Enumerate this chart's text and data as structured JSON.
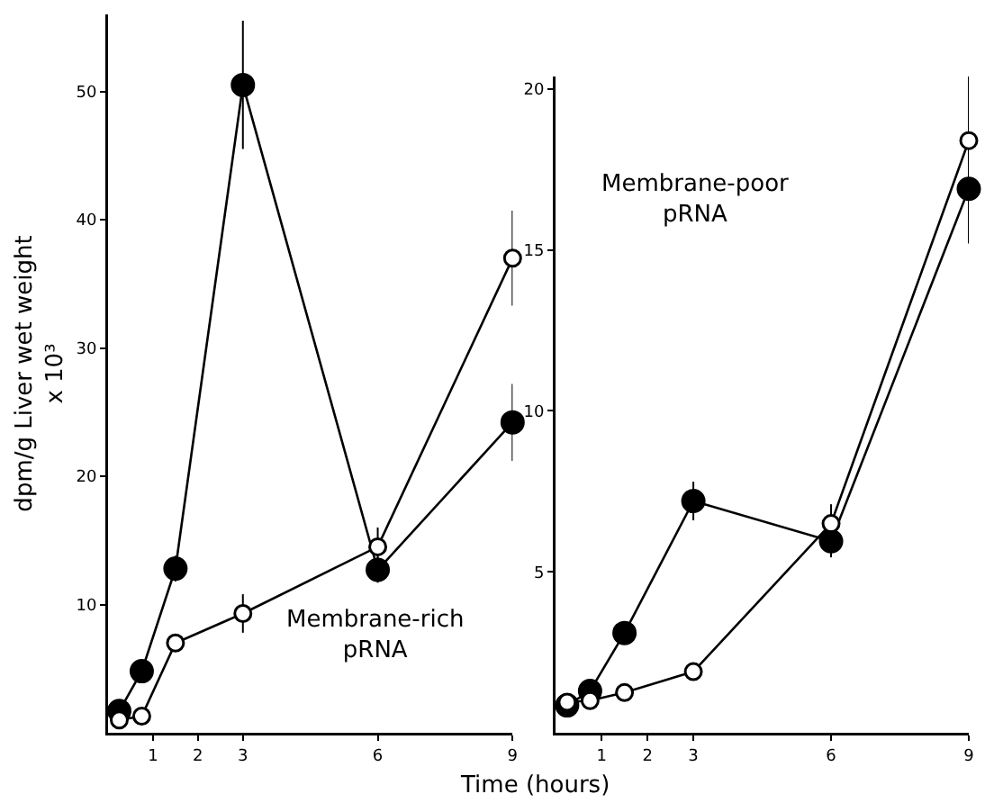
{
  "chart_data": [
    {
      "type": "line",
      "ylabel": "dpm/g Liver wet weight\nx 10³",
      "xlabel": "Time (hours)",
      "annotations": [
        "Membrane-rich\npRNA"
      ],
      "x": [
        0.25,
        0.75,
        1.5,
        3,
        6,
        9
      ],
      "xlim": [
        0,
        9
      ],
      "xticks": [
        1,
        2,
        3,
        6,
        9
      ],
      "ylim": [
        0,
        56
      ],
      "yticks": [
        10,
        20,
        30,
        40,
        50
      ],
      "marker": "circle",
      "grid": false,
      "legend": false,
      "series": [
        {
          "color": "#000000",
          "values": [
            1.7,
            4.8,
            12.8,
            50.5,
            12.7,
            24.2
          ],
          "errors": [
            null,
            null,
            1,
            5,
            1,
            3
          ]
        },
        {
          "color": "#ffffff",
          "values": [
            1.0,
            1.3,
            7.0,
            9.3,
            14.5,
            37.0
          ],
          "errors": [
            null,
            null,
            null,
            1.5,
            1.5,
            3.7
          ]
        }
      ]
    },
    {
      "type": "line",
      "annotations": [
        "Membrane-poor\npRNA"
      ],
      "x": [
        0.25,
        0.75,
        1.5,
        3,
        6,
        9
      ],
      "xlim": [
        0,
        9
      ],
      "xticks": [
        1,
        2,
        3,
        6,
        9
      ],
      "ylim": [
        0,
        20.4
      ],
      "yticks": [
        5,
        10,
        15,
        20
      ],
      "marker": "circle",
      "grid": false,
      "legend": false,
      "series": [
        {
          "color": "#000000",
          "values": [
            0.85,
            1.3,
            3.1,
            7.2,
            5.95,
            16.9
          ],
          "errors": [
            null,
            null,
            null,
            0.6,
            0.5,
            1.7
          ]
        },
        {
          "color": "#ffffff",
          "values": [
            0.95,
            1.0,
            1.25,
            1.9,
            6.5,
            18.4
          ],
          "errors": [
            null,
            null,
            null,
            null,
            0.6,
            2.0
          ]
        }
      ]
    }
  ]
}
